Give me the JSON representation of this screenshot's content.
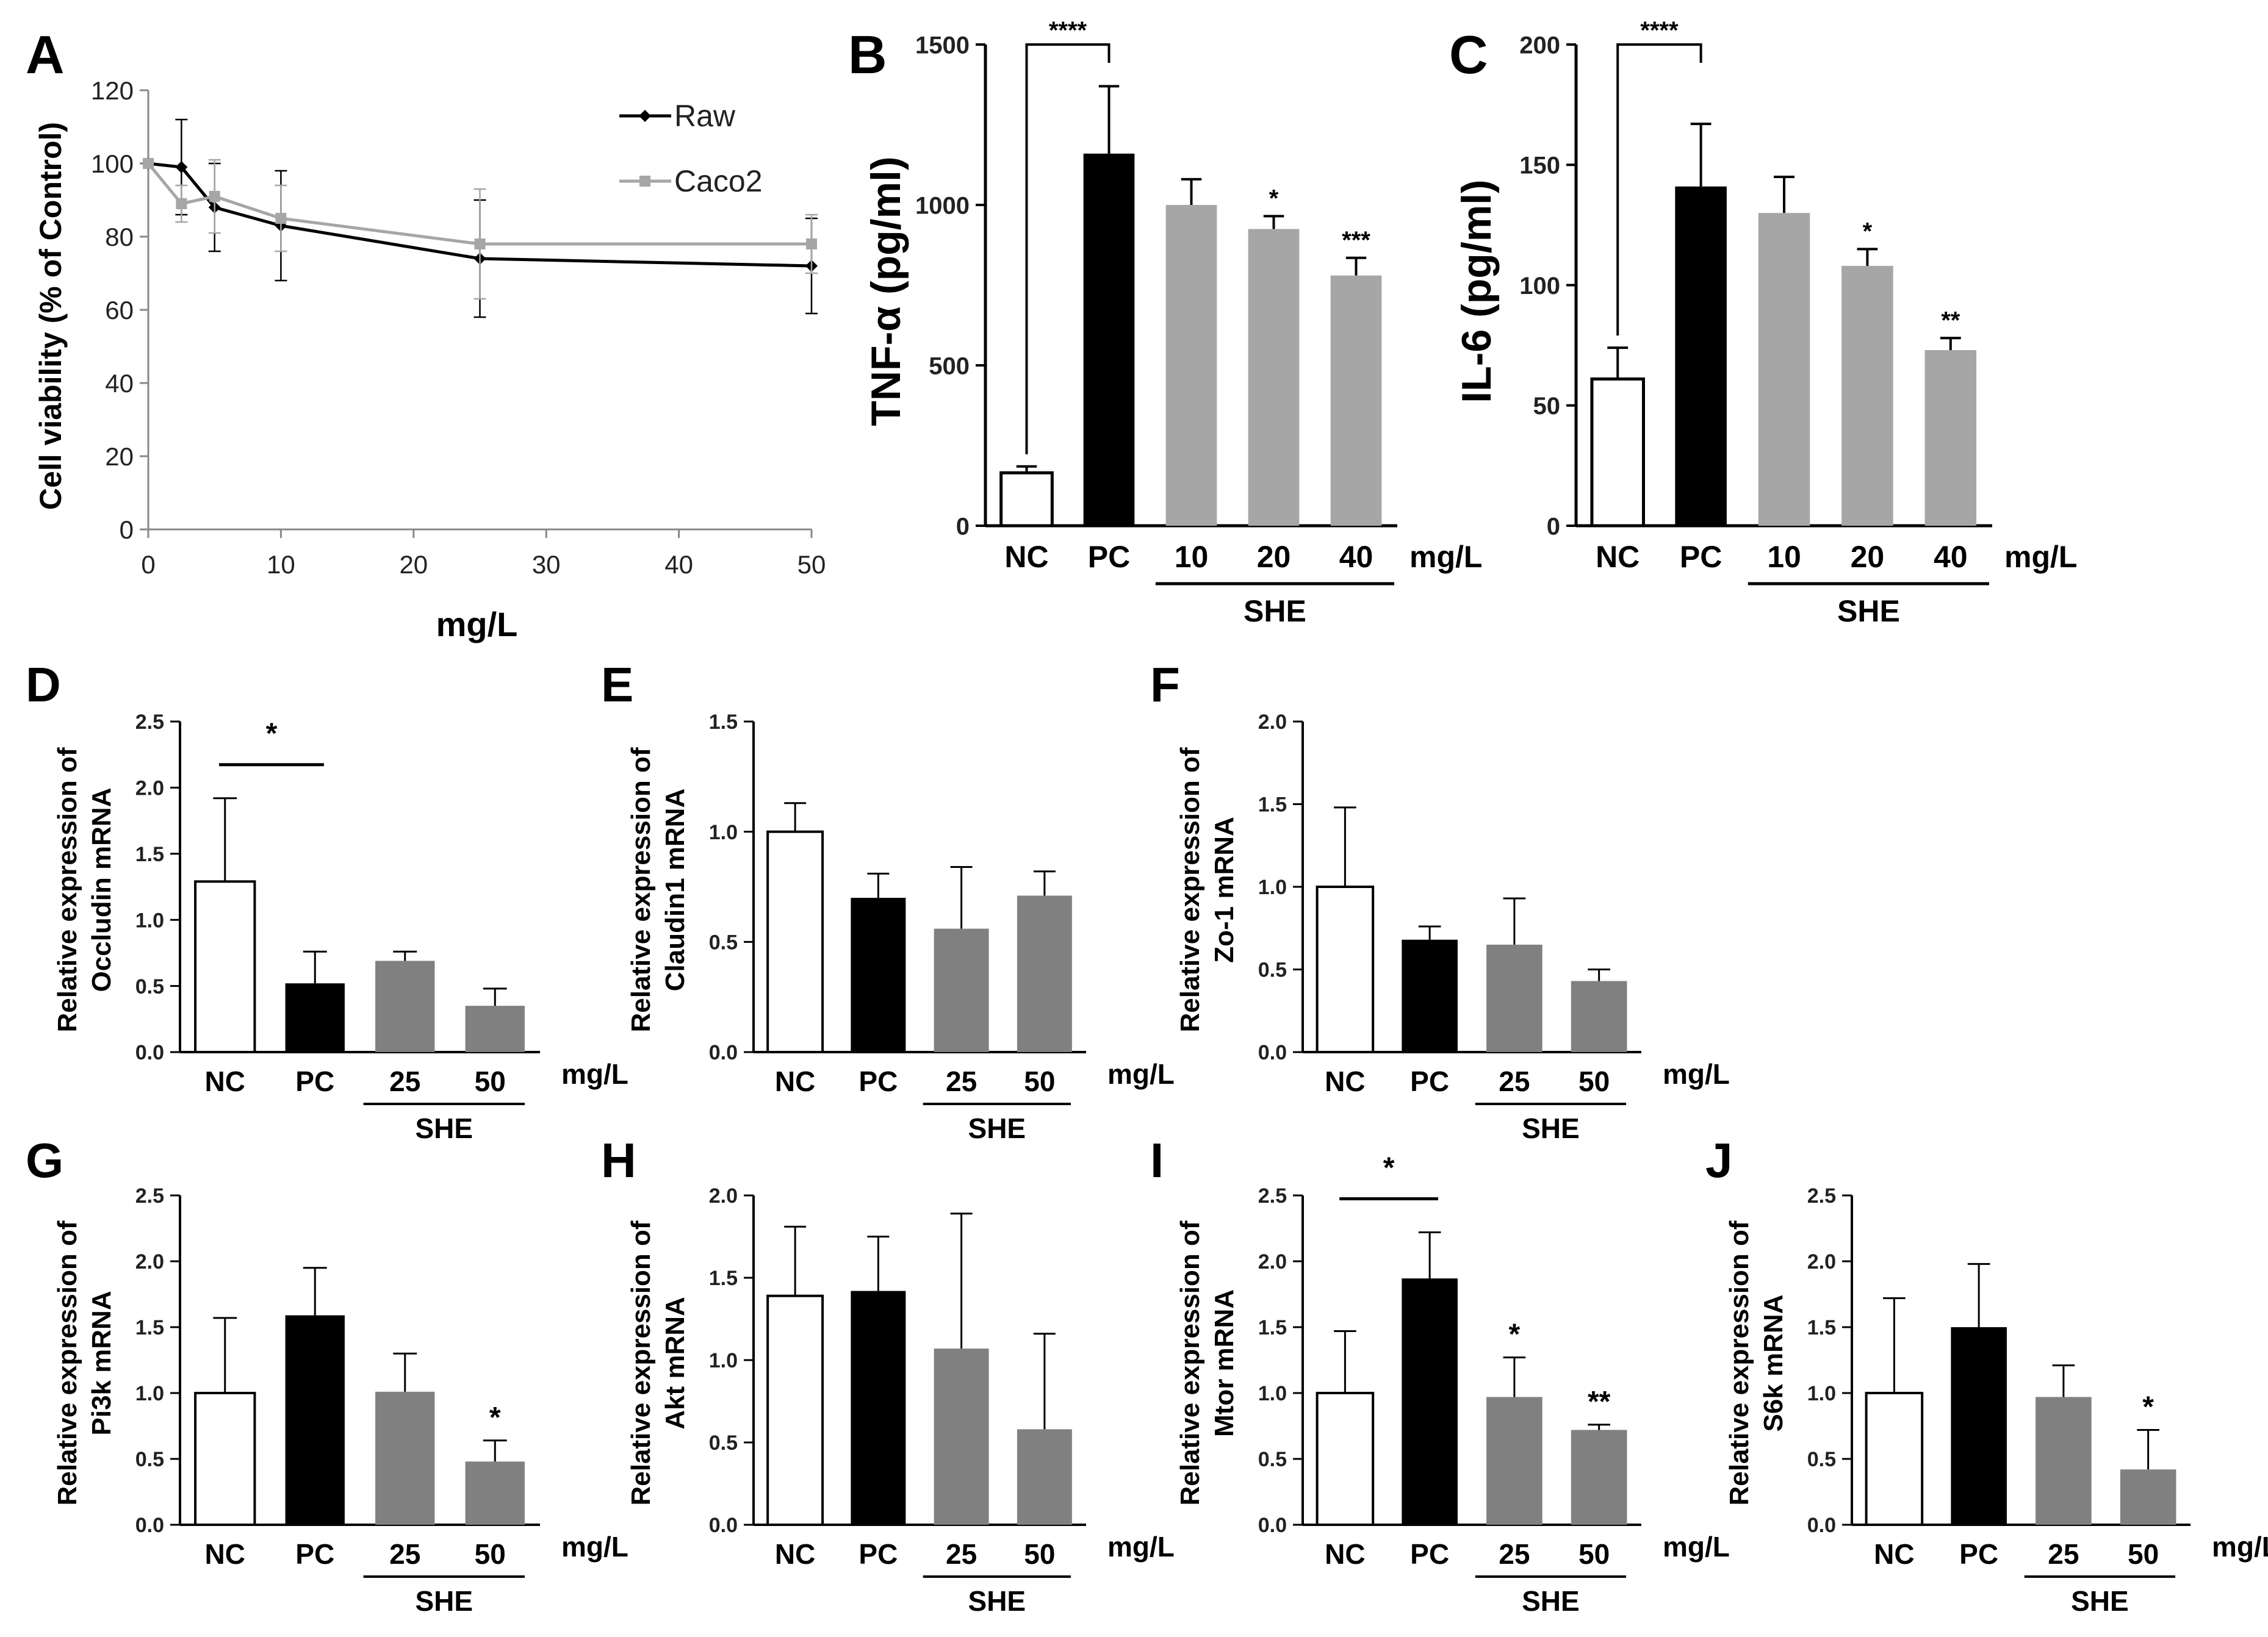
{
  "chart_data": [
    {
      "panel": "A",
      "type": "line",
      "x": [
        0,
        2.5,
        5,
        10,
        25,
        50
      ],
      "series": [
        {
          "name": "Raw",
          "color": "#000000",
          "values": [
            100,
            99,
            88,
            83,
            74,
            72
          ],
          "errors": [
            0,
            13,
            12,
            15,
            16,
            13
          ]
        },
        {
          "name": "Caco2",
          "color": "#a6a6a6",
          "values": [
            100,
            89,
            91,
            85,
            78,
            78
          ],
          "errors": [
            0,
            5,
            10,
            9,
            15,
            8
          ]
        }
      ],
      "xlabel": "mg/L",
      "ylabel": "Cell viability (% of Control)",
      "xlim": [
        0,
        50
      ],
      "ylim": [
        0,
        120
      ],
      "xticks": [
        "0",
        "10",
        "20",
        "30",
        "40",
        "50"
      ],
      "yticks": [
        "0",
        "20",
        "40",
        "60",
        "80",
        "100",
        "120"
      ],
      "legend": "top-right"
    },
    {
      "panel": "B",
      "type": "bar",
      "categories": [
        "NC",
        "PC",
        "10",
        "20",
        "40"
      ],
      "values": [
        165,
        1160,
        1000,
        925,
        780
      ],
      "errors": [
        20,
        210,
        80,
        40,
        55
      ],
      "colors": [
        "#ffffff",
        "#000000",
        "#a6a6a6",
        "#a6a6a6",
        "#a6a6a6"
      ],
      "stars": [
        "",
        "",
        "",
        "*",
        "***"
      ],
      "bracket": {
        "from": 0,
        "to": 1,
        "label": "****"
      },
      "ylabel": "TNF-α (pg/ml)",
      "ylim": [
        0,
        1500
      ],
      "yticks": [
        "0",
        "500",
        "1000",
        "1500"
      ],
      "unit": "mg/L",
      "group_label": "SHE",
      "group_from": 2
    },
    {
      "panel": "C",
      "type": "bar",
      "categories": [
        "NC",
        "PC",
        "10",
        "20",
        "40"
      ],
      "values": [
        61,
        141,
        130,
        108,
        73
      ],
      "errors": [
        13,
        26,
        15,
        7,
        5
      ],
      "colors": [
        "#ffffff",
        "#000000",
        "#a6a6a6",
        "#a6a6a6",
        "#a6a6a6"
      ],
      "stars": [
        "",
        "",
        "",
        "*",
        "**"
      ],
      "bracket": {
        "from": 0,
        "to": 1,
        "label": "****"
      },
      "ylabel": "IL-6 (pg/ml)",
      "ylim": [
        0,
        200
      ],
      "yticks": [
        "0",
        "50",
        "100",
        "150",
        "200"
      ],
      "unit": "mg/L",
      "group_label": "SHE",
      "group_from": 2
    },
    {
      "panel": "D",
      "type": "bar",
      "categories": [
        "NC",
        "PC",
        "25",
        "50"
      ],
      "values": [
        1.29,
        0.52,
        0.69,
        0.35
      ],
      "errors": [
        0.63,
        0.24,
        0.07,
        0.13
      ],
      "colors": [
        "#ffffff",
        "#000000",
        "#808080",
        "#808080"
      ],
      "stars": [
        "",
        "",
        "",
        ""
      ],
      "line_sig": {
        "from": 0,
        "to": 1,
        "label": "*"
      },
      "ylabel_lines": [
        "Relative expression of",
        "Occludin mRNA"
      ],
      "ylim": [
        0,
        2.5
      ],
      "yticks": [
        "0.0",
        "0.5",
        "1.0",
        "1.5",
        "2.0",
        "2.5"
      ],
      "unit": "mg/L",
      "group_label": "SHE",
      "group_from": 2
    },
    {
      "panel": "E",
      "type": "bar",
      "categories": [
        "NC",
        "PC",
        "25",
        "50"
      ],
      "values": [
        1.0,
        0.7,
        0.56,
        0.71
      ],
      "errors": [
        0.13,
        0.11,
        0.28,
        0.11
      ],
      "colors": [
        "#ffffff",
        "#000000",
        "#808080",
        "#808080"
      ],
      "stars": [
        "",
        "",
        "",
        ""
      ],
      "ylabel_lines": [
        "Relative expression of",
        "Claudin1 mRNA"
      ],
      "ylim": [
        0,
        1.5
      ],
      "yticks": [
        "0.0",
        "0.5",
        "1.0",
        "1.5"
      ],
      "unit": "mg/L",
      "group_label": "SHE",
      "group_from": 2
    },
    {
      "panel": "F",
      "type": "bar",
      "categories": [
        "NC",
        "PC",
        "25",
        "50"
      ],
      "values": [
        1.0,
        0.68,
        0.65,
        0.43
      ],
      "errors": [
        0.48,
        0.08,
        0.28,
        0.07
      ],
      "colors": [
        "#ffffff",
        "#000000",
        "#808080",
        "#808080"
      ],
      "stars": [
        "",
        "",
        "",
        ""
      ],
      "ylabel_lines": [
        "Relative expression of",
        "Zo-1 mRNA"
      ],
      "ylim": [
        0,
        2.0
      ],
      "yticks": [
        "0.0",
        "0.5",
        "1.0",
        "1.5",
        "2.0"
      ],
      "unit": "mg/L",
      "group_label": "SHE",
      "group_from": 2
    },
    {
      "panel": "G",
      "type": "bar",
      "categories": [
        "NC",
        "PC",
        "25",
        "50"
      ],
      "values": [
        1.0,
        1.59,
        1.01,
        0.48
      ],
      "errors": [
        0.57,
        0.36,
        0.29,
        0.16
      ],
      "colors": [
        "#ffffff",
        "#000000",
        "#808080",
        "#808080"
      ],
      "stars": [
        "",
        "",
        "",
        "*"
      ],
      "ylabel_lines": [
        "Relative expression of",
        "Pi3k mRNA"
      ],
      "ylim": [
        0,
        2.5
      ],
      "yticks": [
        "0.0",
        "0.5",
        "1.0",
        "1.5",
        "2.0",
        "2.5"
      ],
      "unit": "mg/L",
      "group_label": "SHE",
      "group_from": 2
    },
    {
      "panel": "H",
      "type": "bar",
      "categories": [
        "NC",
        "PC",
        "25",
        "50"
      ],
      "values": [
        1.39,
        1.42,
        1.07,
        0.58
      ],
      "errors": [
        0.42,
        0.33,
        0.82,
        0.58
      ],
      "colors": [
        "#ffffff",
        "#000000",
        "#808080",
        "#808080"
      ],
      "stars": [
        "",
        "",
        "",
        ""
      ],
      "ylabel_lines": [
        "Relative expression of",
        "Akt mRNA"
      ],
      "ylim": [
        0,
        2.0
      ],
      "yticks": [
        "0.0",
        "0.5",
        "1.0",
        "1.5",
        "2.0"
      ],
      "unit": "mg/L",
      "group_label": "SHE",
      "group_from": 2
    },
    {
      "panel": "I",
      "type": "bar",
      "categories": [
        "NC",
        "PC",
        "25",
        "50"
      ],
      "values": [
        1.0,
        1.87,
        0.97,
        0.72
      ],
      "errors": [
        0.47,
        0.35,
        0.3,
        0.04
      ],
      "colors": [
        "#ffffff",
        "#000000",
        "#808080",
        "#808080"
      ],
      "stars": [
        "",
        "",
        "*",
        "**"
      ],
      "line_sig": {
        "from": 0,
        "to": 1,
        "label": "*"
      },
      "ylabel_lines": [
        "Relative expression of",
        "Mtor mRNA"
      ],
      "ylim": [
        0,
        2.5
      ],
      "yticks": [
        "0.0",
        "0.5",
        "1.0",
        "1.5",
        "2.0",
        "2.5"
      ],
      "unit": "mg/L",
      "group_label": "SHE",
      "group_from": 2
    },
    {
      "panel": "J",
      "type": "bar",
      "categories": [
        "NC",
        "PC",
        "25",
        "50"
      ],
      "values": [
        1.0,
        1.5,
        0.97,
        0.42
      ],
      "errors": [
        0.72,
        0.48,
        0.24,
        0.3
      ],
      "colors": [
        "#ffffff",
        "#000000",
        "#808080",
        "#808080"
      ],
      "stars": [
        "",
        "",
        "",
        "*"
      ],
      "ylabel_lines": [
        "Relative expression of",
        "S6k mRNA"
      ],
      "ylim": [
        0,
        2.5
      ],
      "yticks": [
        "0.0",
        "0.5",
        "1.0",
        "1.5",
        "2.0",
        "2.5"
      ],
      "unit": "mg/L",
      "group_label": "SHE",
      "group_from": 2
    }
  ]
}
